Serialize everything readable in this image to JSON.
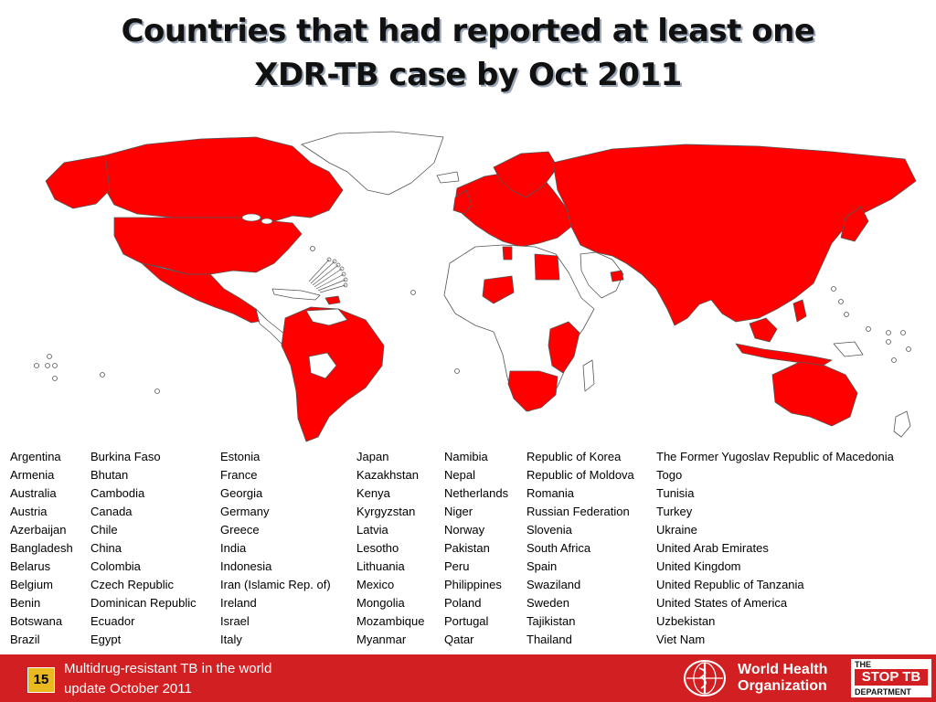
{
  "title": {
    "line1": "Countries that had reported at least one",
    "line2": "XDR-TB case by Oct 2011"
  },
  "map": {
    "reported_color": "#ff0000",
    "other_color": "#ffffff",
    "border_color": "#555555"
  },
  "countries": {
    "col1": [
      "Argentina",
      "Armenia",
      "Australia",
      "Austria",
      "Azerbaijan",
      "Bangladesh",
      "Belarus",
      "Belgium",
      "Benin",
      "Botswana",
      "Brazil"
    ],
    "col2": [
      "Burkina Faso",
      "Bhutan",
      "Cambodia",
      "Canada",
      "Chile",
      "China",
      "Colombia",
      "Czech Republic",
      "Dominican Republic",
      "Ecuador",
      "Egypt"
    ],
    "col3": [
      "Estonia",
      "France",
      "Georgia",
      "Germany",
      "Greece",
      "India",
      "Indonesia",
      "Iran (Islamic Rep. of)",
      "Ireland",
      "Israel",
      "Italy"
    ],
    "col4": [
      "Japan",
      "Kazakhstan",
      "Kenya",
      "Kyrgyzstan",
      "Latvia",
      "Lesotho",
      "Lithuania",
      "Mexico",
      "Mongolia",
      "Mozambique",
      "Myanmar"
    ],
    "col5": [
      "Namibia",
      "Nepal",
      "Netherlands",
      "Niger",
      "Norway",
      "Pakistan",
      "Peru",
      "Philippines",
      "Poland",
      "Portugal",
      "Qatar"
    ],
    "col6": [
      "Republic of Korea",
      "Republic of Moldova",
      "Romania",
      "Russian Federation",
      "Slovenia",
      "South Africa",
      "Spain",
      "Swaziland",
      "Sweden",
      "Tajikistan",
      "Thailand"
    ],
    "col7": [
      "The Former Yugoslav Republic of Macedonia",
      "Togo",
      "Tunisia",
      "Turkey",
      "Ukraine",
      "United Arab Emirates",
      "United Kingdom",
      "United Republic of Tanzania",
      "United States of America",
      "Uzbekistan",
      "Viet Nam"
    ]
  },
  "footer": {
    "page_number": "15",
    "text_line1": "Multidrug-resistant TB in the world",
    "text_line2": "update October 2011",
    "who_line1": "World Health",
    "who_line2": "Organization",
    "stoptb_top": "THE",
    "stoptb_main": "STOP TB",
    "stoptb_bottom": "DEPARTMENT",
    "bar_color": "#d21f21",
    "badge_color": "#e9b91f"
  }
}
